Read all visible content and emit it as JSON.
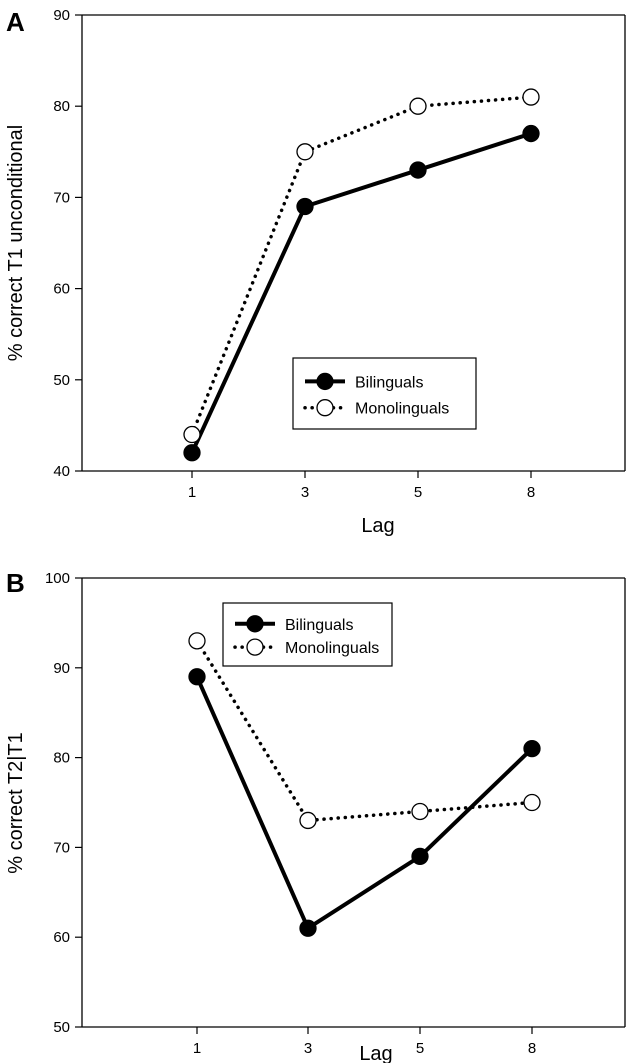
{
  "chart_data": [
    {
      "type": "line",
      "panel": "A",
      "title": "",
      "xlabel": "Lag",
      "ylabel": "% correct T1 unconditional",
      "categories": [
        "1",
        "3",
        "5",
        "8"
      ],
      "yticks": [
        "40",
        "50",
        "60",
        "70",
        "80",
        "90"
      ],
      "ylim": [
        40,
        90
      ],
      "grid": false,
      "legend": "center-right",
      "series": [
        {
          "name": "Bilinguals",
          "values": [
            42,
            69,
            73,
            77
          ],
          "line_style": "solid",
          "marker": "filled-circle",
          "color": "#000000"
        },
        {
          "name": "Monolinguals",
          "values": [
            44,
            75,
            80,
            81
          ],
          "line_style": "dotted",
          "marker": "open-circle",
          "color": "#000000"
        }
      ]
    },
    {
      "type": "line",
      "panel": "B",
      "title": "",
      "xlabel": "Lag",
      "ylabel": "% correct T2|T1",
      "categories": [
        "1",
        "3",
        "5",
        "8"
      ],
      "yticks": [
        "50",
        "60",
        "70",
        "80",
        "90",
        "100"
      ],
      "ylim": [
        50,
        100
      ],
      "grid": false,
      "legend": "top-center",
      "series": [
        {
          "name": "Bilinguals",
          "values": [
            89,
            61,
            69,
            81
          ],
          "line_style": "solid",
          "marker": "filled-circle",
          "color": "#000000"
        },
        {
          "name": "Monolinguals",
          "values": [
            93,
            73,
            74,
            75
          ],
          "line_style": "dotted",
          "marker": "open-circle",
          "color": "#000000"
        }
      ]
    }
  ]
}
